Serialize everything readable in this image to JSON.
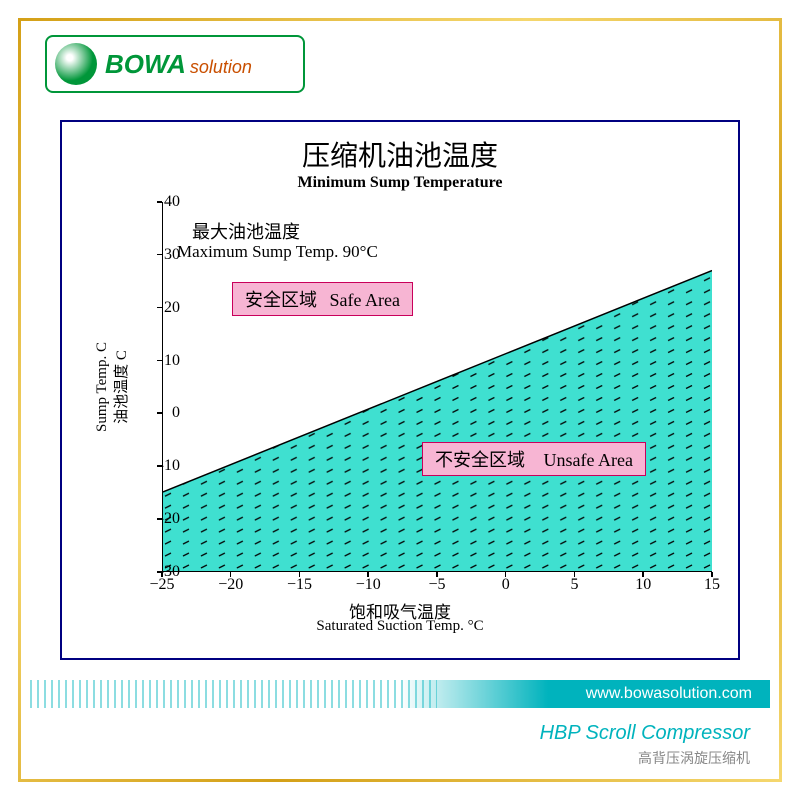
{
  "logo": {
    "brand": "BOWA",
    "suffix": "solution"
  },
  "chart": {
    "type": "area",
    "title_cn": "压缩机油池温度",
    "title_en": "Minimum Sump Temperature",
    "xlim": [
      -25,
      15
    ],
    "ylim": [
      -30,
      40
    ],
    "x_ticks": [
      -25,
      -20,
      -15,
      -10,
      -5,
      0,
      5,
      10,
      15
    ],
    "y_ticks": [
      -30,
      -20,
      -10,
      0,
      10,
      20,
      30,
      40
    ],
    "x_label_cn": "饱和吸气温度",
    "x_label_en": "Saturated Suction Temp.  °C",
    "y_label_cn": "油池温度   C",
    "y_label_en": "Sump Temp.  C",
    "line_points": [
      [
        -25,
        -15
      ],
      [
        15,
        27
      ]
    ],
    "unsafe_fill_color": "#3fe0d0",
    "line_color": "#000000",
    "max_temp_cn": "最大油池温度",
    "max_temp_en": "Maximum Sump Temp.  90°C",
    "safe_box": {
      "cn": "安全区域",
      "en": "Safe Area"
    },
    "unsafe_box": {
      "cn": "不安全区域",
      "en": "Unsafe Area"
    },
    "box_bg": "#f7b5d3",
    "box_border": "#c9005b"
  },
  "footer": {
    "url": "www.bowasolution.com",
    "product_en": "HBP Scroll Compressor",
    "product_cn": "高背压涡旋压缩机"
  }
}
